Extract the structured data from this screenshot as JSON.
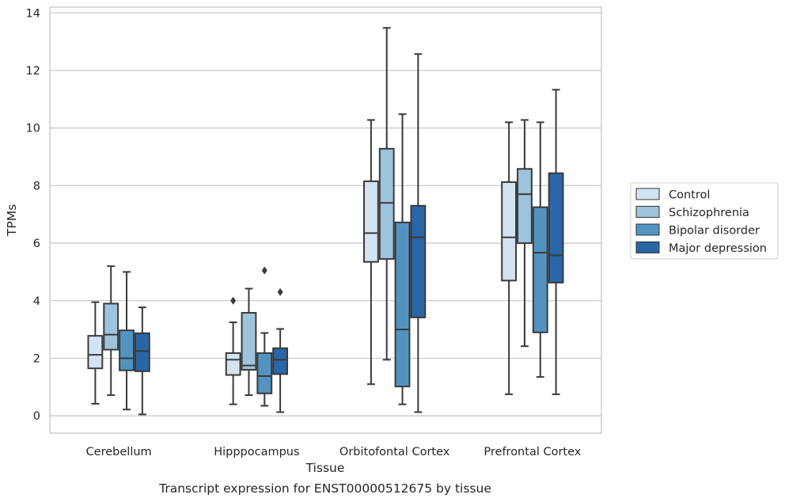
{
  "chart_data": {
    "type": "box",
    "title": "",
    "caption": "Transcript expression for ENST00000512675 by tissue",
    "xlabel": "Tissue",
    "ylabel": "TPMs",
    "ylim": [
      -0.6,
      14.2
    ],
    "yticks": [
      0,
      2,
      4,
      6,
      8,
      10,
      12,
      14
    ],
    "grid": true,
    "legend_position": "right",
    "categories": [
      "Cerebellum",
      "Hipppocampus",
      "Orbitofontal Cortex",
      "Prefrontal Cortex"
    ],
    "series": [
      {
        "name": "Control",
        "color": "#d3e3f2",
        "boxes": [
          {
            "whislo": 0.42,
            "q1": 1.65,
            "med": 2.12,
            "q3": 2.78,
            "whishi": 3.95,
            "fliers": []
          },
          {
            "whislo": 0.4,
            "q1": 1.42,
            "med": 1.95,
            "q3": 2.18,
            "whishi": 3.25,
            "fliers": [
              4.0
            ]
          },
          {
            "whislo": 1.1,
            "q1": 5.35,
            "med": 6.35,
            "q3": 8.15,
            "whishi": 10.28,
            "fliers": []
          },
          {
            "whislo": 0.75,
            "q1": 4.7,
            "med": 6.2,
            "q3": 8.12,
            "whishi": 10.2,
            "fliers": []
          }
        ]
      },
      {
        "name": "Schizophrenia",
        "color": "#9dc3dd",
        "boxes": [
          {
            "whislo": 0.72,
            "q1": 2.3,
            "med": 2.82,
            "q3": 3.9,
            "whishi": 5.2,
            "fliers": []
          },
          {
            "whislo": 0.72,
            "q1": 1.6,
            "med": 1.75,
            "q3": 3.58,
            "whishi": 4.42,
            "fliers": []
          },
          {
            "whislo": 1.95,
            "q1": 5.45,
            "med": 7.4,
            "q3": 9.28,
            "whishi": 13.48,
            "fliers": []
          },
          {
            "whislo": 2.42,
            "q1": 6.0,
            "med": 7.7,
            "q3": 8.58,
            "whishi": 10.28,
            "fliers": []
          }
        ]
      },
      {
        "name": "Bipolar disorder",
        "color": "#5393c2",
        "boxes": [
          {
            "whislo": 0.22,
            "q1": 1.58,
            "med": 2.0,
            "q3": 2.97,
            "whishi": 5.0,
            "fliers": []
          },
          {
            "whislo": 0.35,
            "q1": 0.78,
            "med": 1.38,
            "q3": 2.18,
            "whishi": 2.88,
            "fliers": [
              5.05
            ]
          },
          {
            "whislo": 0.4,
            "q1": 1.02,
            "med": 3.0,
            "q3": 6.72,
            "whishi": 10.48,
            "fliers": []
          },
          {
            "whislo": 1.35,
            "q1": 2.9,
            "med": 5.67,
            "q3": 7.25,
            "whishi": 10.2,
            "fliers": []
          }
        ]
      },
      {
        "name": "Major depression",
        "color": "#2866a8",
        "boxes": [
          {
            "whislo": 0.05,
            "q1": 1.55,
            "med": 2.25,
            "q3": 2.87,
            "whishi": 3.77,
            "fliers": []
          },
          {
            "whislo": 0.13,
            "q1": 1.45,
            "med": 1.95,
            "q3": 2.35,
            "whishi": 3.02,
            "fliers": [
              4.3
            ]
          },
          {
            "whislo": 0.13,
            "q1": 3.42,
            "med": 6.2,
            "q3": 7.3,
            "whishi": 12.57,
            "fliers": []
          },
          {
            "whislo": 0.75,
            "q1": 4.63,
            "med": 5.58,
            "q3": 8.43,
            "whishi": 11.33,
            "fliers": []
          }
        ]
      }
    ]
  }
}
